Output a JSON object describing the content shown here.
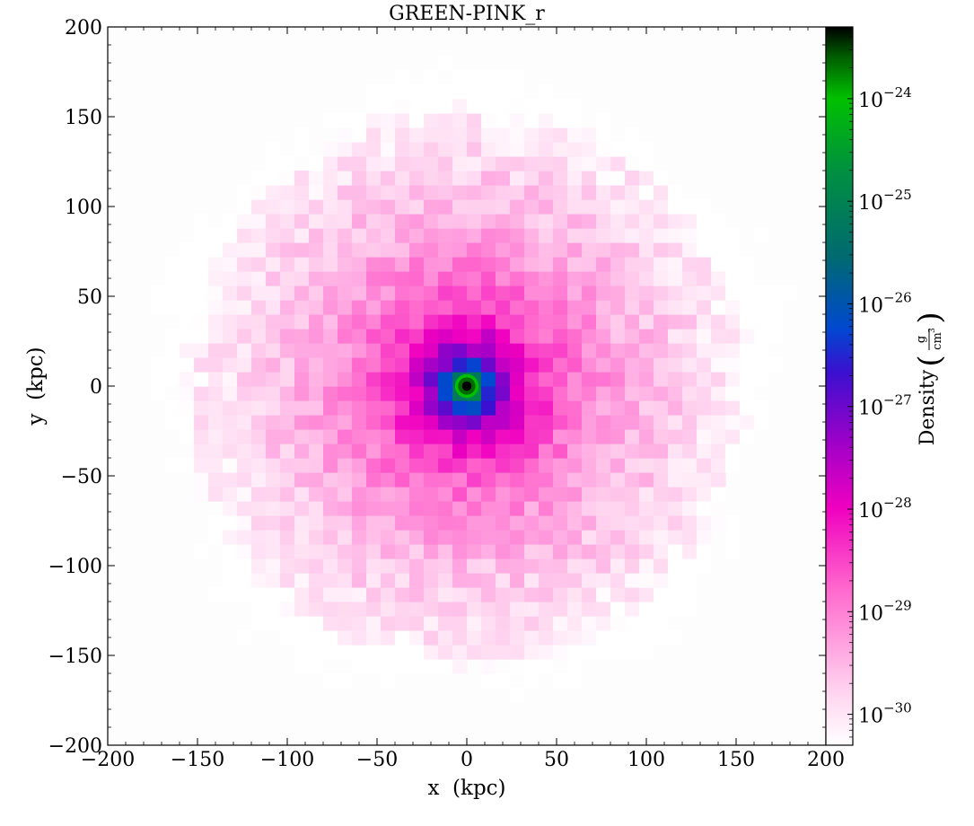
{
  "chart_data": {
    "type": "heatmap",
    "title": "GREEN-PINK_r",
    "xlabel": "x  (kpc)",
    "ylabel": "y  (kpc)",
    "xlim": [
      -200,
      200
    ],
    "ylim": [
      -200,
      200
    ],
    "xticks": [
      -200,
      -150,
      -100,
      -50,
      0,
      50,
      100,
      150,
      200
    ],
    "yticks": [
      -200,
      -150,
      -100,
      -50,
      0,
      50,
      100,
      150,
      200
    ],
    "xtick_labels": [
      "−200",
      "−150",
      "−100",
      "−50",
      "0",
      "50",
      "100",
      "150",
      "200"
    ],
    "ytick_labels": [
      "−200",
      "−150",
      "−100",
      "−50",
      "0",
      "50",
      "100",
      "150",
      "200"
    ],
    "colorbar": {
      "label": "Density",
      "unit_numerator": "g",
      "unit_denominator": "cm",
      "unit_denominator_exp": "3",
      "scale": "log",
      "range": [
        5e-31,
        5e-24
      ],
      "ticks": [
        1e-30,
        1e-29,
        1e-28,
        1e-27,
        1e-26,
        1e-25,
        1e-24
      ],
      "tick_base": "10",
      "tick_exponents": [
        "−30",
        "−29",
        "−28",
        "−27",
        "−26",
        "−25",
        "−24"
      ],
      "colors": [
        "#ffffff",
        "#ff99dd",
        "#f000c0",
        "#8a00c0",
        "#0040d0",
        "#006a70",
        "#00a040",
        "#00c000",
        "#000000"
      ]
    },
    "grid": false,
    "field": {
      "description_values": {
        "center": [
          0,
          0
        ],
        "outer_radius_kpc": 170,
        "density_center": 5e-24,
        "density_edge": 1e-30,
        "background": 0
      }
    }
  }
}
